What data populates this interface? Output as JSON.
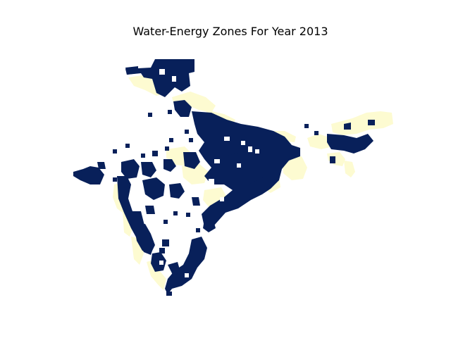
{
  "figure": {
    "title": "Water-Energy Zones For Year 2013"
  },
  "map": {
    "kind": "raster-zone-map",
    "axes_visible": false,
    "colors": {
      "zone_high": "#08205a",
      "zone_low": "#fdfbd1",
      "background": "#ffffff"
    }
  }
}
